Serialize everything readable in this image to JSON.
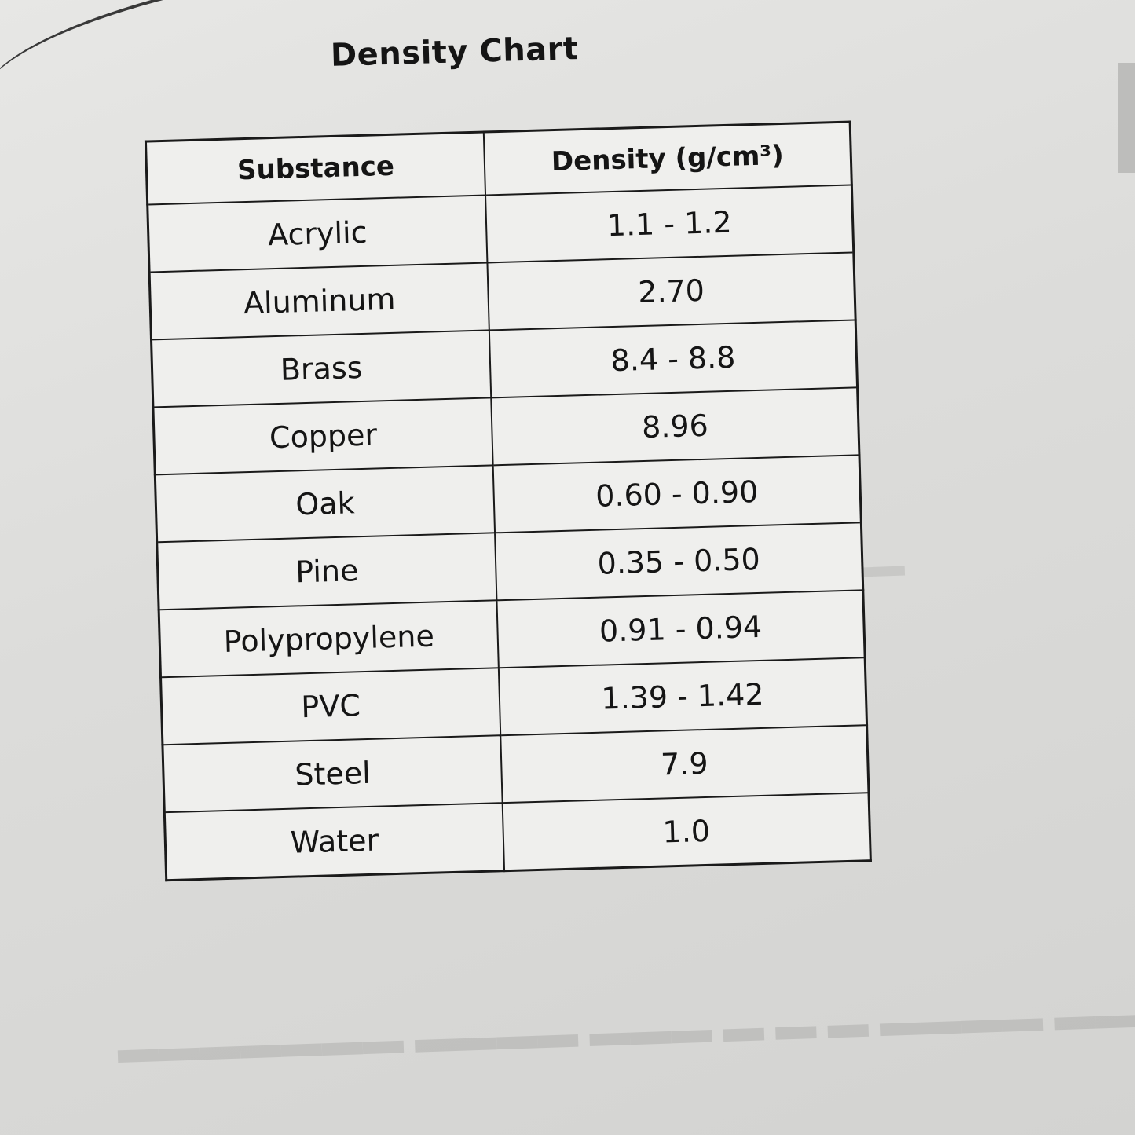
{
  "title": "Density Chart",
  "table": {
    "headers": {
      "substance": "Substance",
      "density": "Density (g/cm³)"
    },
    "rows": [
      {
        "substance": "Acrylic",
        "density": "1.1 - 1.2"
      },
      {
        "substance": "Aluminum",
        "density": "2.70"
      },
      {
        "substance": "Brass",
        "density": "8.4 - 8.8"
      },
      {
        "substance": "Copper",
        "density": "8.96"
      },
      {
        "substance": "Oak",
        "density": "0.60 - 0.90"
      },
      {
        "substance": "Pine",
        "density": "0.35 - 0.50"
      },
      {
        "substance": "Polypropylene",
        "density": "0.91 - 0.94"
      },
      {
        "substance": "PVC",
        "density": "1.39 - 1.42"
      },
      {
        "substance": "Steel",
        "density": "7.9"
      },
      {
        "substance": "Water",
        "density": "1.0"
      }
    ]
  }
}
